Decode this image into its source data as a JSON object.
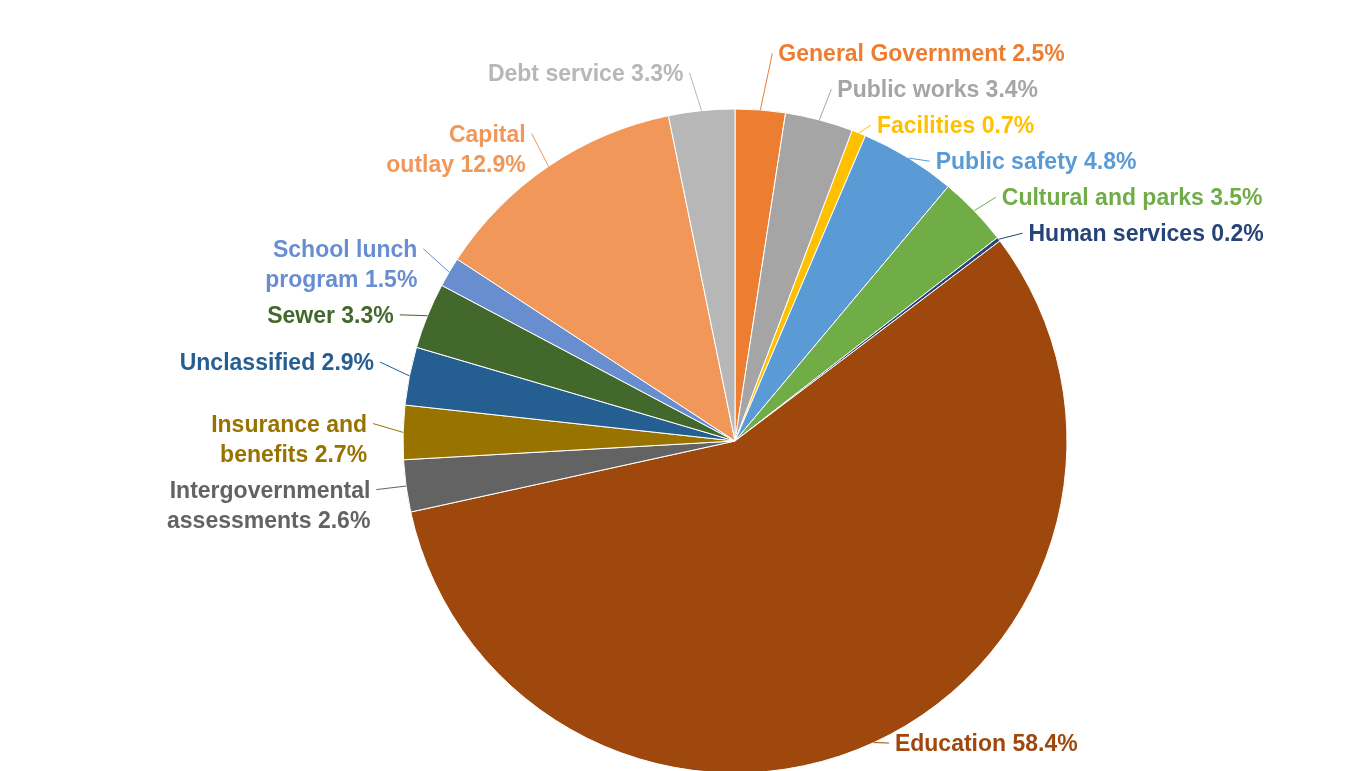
{
  "chart_data": {
    "type": "pie",
    "categories": [
      "General Government",
      "Public works",
      "Facilities",
      "Public safety",
      "Cultural and parks",
      "Human services",
      "Education",
      "Intergovernmental assessments",
      "Insurance and benefits",
      "Unclassified",
      "Sewer",
      "School lunch program",
      "Capital outlay",
      "Debt service"
    ],
    "values": [
      2.5,
      3.4,
      0.7,
      4.8,
      3.5,
      0.2,
      58.4,
      2.6,
      2.7,
      2.9,
      3.3,
      1.5,
      12.9,
      3.3
    ],
    "value_labels": [
      "2.5%",
      "3.4%",
      "0.7%",
      "4.8%",
      "3.5%",
      "0.2%",
      "58.4%",
      "2.6%",
      "2.7%",
      "2.9%",
      "3.3%",
      "1.5%",
      "12.9%",
      "3.3%"
    ],
    "colors": [
      "#ed7d31",
      "#a5a5a5",
      "#ffc000",
      "#5b9bd5",
      "#70ad47",
      "#264478",
      "#9e480e",
      "#636363",
      "#997300",
      "#255e91",
      "#43682b",
      "#698ed0",
      "#f1975a",
      "#b7b7b7"
    ]
  }
}
